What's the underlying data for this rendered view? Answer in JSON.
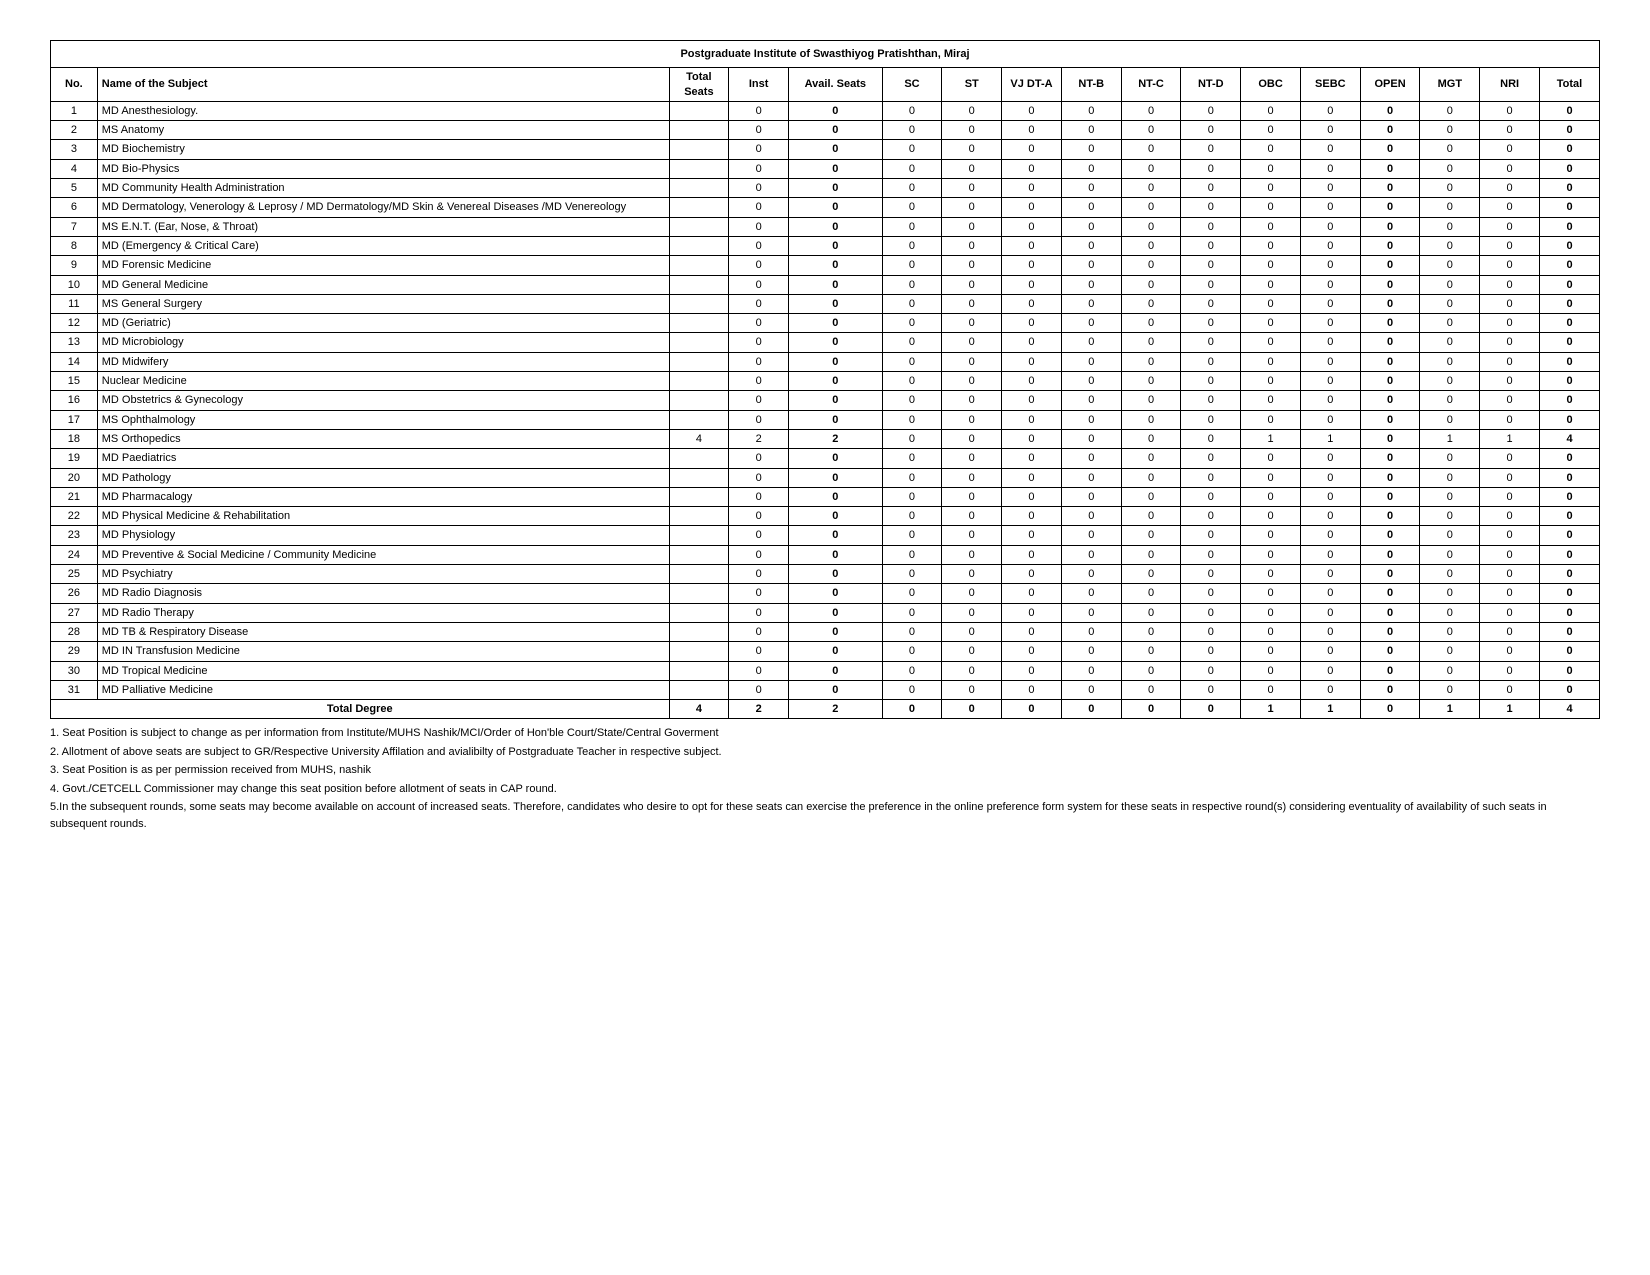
{
  "title": "Postgraduate Institute of Swasthiyog Pratishthan, Miraj",
  "columns": [
    "No.",
    "Name of the Subject",
    "Total Seats",
    "Inst",
    "Avail. Seats",
    "SC",
    "ST",
    "VJ DT-A",
    "NT-B",
    "NT-C",
    "NT-D",
    "OBC",
    "SEBC",
    "OPEN",
    "MGT",
    "NRI",
    "Total"
  ],
  "bold_cols": [
    4,
    13,
    16
  ],
  "col_classes": [
    "c-no",
    "c-name",
    "c-num",
    "c-num",
    "c-avail",
    "c-num",
    "c-num",
    "c-num",
    "c-num",
    "c-num",
    "c-num",
    "c-num",
    "c-num",
    "c-num",
    "c-num",
    "c-num",
    "c-num"
  ],
  "rows": [
    {
      "no": "1",
      "name": "MD Anesthesiology.",
      "vals": [
        "",
        "0",
        "0",
        "0",
        "0",
        "0",
        "0",
        "0",
        "0",
        "0",
        "0",
        "0",
        "0",
        "0",
        "0"
      ]
    },
    {
      "no": "2",
      "name": "MS Anatomy",
      "vals": [
        "",
        "0",
        "0",
        "0",
        "0",
        "0",
        "0",
        "0",
        "0",
        "0",
        "0",
        "0",
        "0",
        "0",
        "0"
      ]
    },
    {
      "no": "3",
      "name": "MD Biochemistry",
      "vals": [
        "",
        "0",
        "0",
        "0",
        "0",
        "0",
        "0",
        "0",
        "0",
        "0",
        "0",
        "0",
        "0",
        "0",
        "0"
      ]
    },
    {
      "no": "4",
      "name": "MD Bio-Physics",
      "vals": [
        "",
        "0",
        "0",
        "0",
        "0",
        "0",
        "0",
        "0",
        "0",
        "0",
        "0",
        "0",
        "0",
        "0",
        "0"
      ]
    },
    {
      "no": "5",
      "name": "MD Community Health Administration",
      "vals": [
        "",
        "0",
        "0",
        "0",
        "0",
        "0",
        "0",
        "0",
        "0",
        "0",
        "0",
        "0",
        "0",
        "0",
        "0"
      ]
    },
    {
      "no": "6",
      "name": "MD Dermatology, Venerology & Leprosy / MD Dermatology/MD Skin & Venereal Diseases /MD Venereology",
      "vals": [
        "",
        "0",
        "0",
        "0",
        "0",
        "0",
        "0",
        "0",
        "0",
        "0",
        "0",
        "0",
        "0",
        "0",
        "0"
      ]
    },
    {
      "no": "7",
      "name": "MS E.N.T. (Ear, Nose, & Throat)",
      "vals": [
        "",
        "0",
        "0",
        "0",
        "0",
        "0",
        "0",
        "0",
        "0",
        "0",
        "0",
        "0",
        "0",
        "0",
        "0"
      ]
    },
    {
      "no": "8",
      "name": "MD (Emergency & Critical Care)",
      "vals": [
        "",
        "0",
        "0",
        "0",
        "0",
        "0",
        "0",
        "0",
        "0",
        "0",
        "0",
        "0",
        "0",
        "0",
        "0"
      ]
    },
    {
      "no": "9",
      "name": "MD Forensic Medicine",
      "vals": [
        "",
        "0",
        "0",
        "0",
        "0",
        "0",
        "0",
        "0",
        "0",
        "0",
        "0",
        "0",
        "0",
        "0",
        "0"
      ]
    },
    {
      "no": "10",
      "name": "MD General Medicine",
      "vals": [
        "",
        "0",
        "0",
        "0",
        "0",
        "0",
        "0",
        "0",
        "0",
        "0",
        "0",
        "0",
        "0",
        "0",
        "0"
      ]
    },
    {
      "no": "11",
      "name": "MS General Surgery",
      "vals": [
        "",
        "0",
        "0",
        "0",
        "0",
        "0",
        "0",
        "0",
        "0",
        "0",
        "0",
        "0",
        "0",
        "0",
        "0"
      ]
    },
    {
      "no": "12",
      "name": "MD (Geriatric)",
      "vals": [
        "",
        "0",
        "0",
        "0",
        "0",
        "0",
        "0",
        "0",
        "0",
        "0",
        "0",
        "0",
        "0",
        "0",
        "0"
      ]
    },
    {
      "no": "13",
      "name": "MD Microbiology",
      "vals": [
        "",
        "0",
        "0",
        "0",
        "0",
        "0",
        "0",
        "0",
        "0",
        "0",
        "0",
        "0",
        "0",
        "0",
        "0"
      ]
    },
    {
      "no": "14",
      "name": "MD Midwifery",
      "vals": [
        "",
        "0",
        "0",
        "0",
        "0",
        "0",
        "0",
        "0",
        "0",
        "0",
        "0",
        "0",
        "0",
        "0",
        "0"
      ]
    },
    {
      "no": "15",
      "name": "Nuclear Medicine",
      "vals": [
        "",
        "0",
        "0",
        "0",
        "0",
        "0",
        "0",
        "0",
        "0",
        "0",
        "0",
        "0",
        "0",
        "0",
        "0"
      ]
    },
    {
      "no": "16",
      "name": "MD Obstetrics & Gynecology",
      "vals": [
        "",
        "0",
        "0",
        "0",
        "0",
        "0",
        "0",
        "0",
        "0",
        "0",
        "0",
        "0",
        "0",
        "0",
        "0"
      ]
    },
    {
      "no": "17",
      "name": "MS Ophthalmology",
      "vals": [
        "",
        "0",
        "0",
        "0",
        "0",
        "0",
        "0",
        "0",
        "0",
        "0",
        "0",
        "0",
        "0",
        "0",
        "0"
      ]
    },
    {
      "no": "18",
      "name": "MS Orthopedics",
      "vals": [
        "4",
        "2",
        "2",
        "0",
        "0",
        "0",
        "0",
        "0",
        "0",
        "1",
        "1",
        "0",
        "1",
        "1",
        "4"
      ]
    },
    {
      "no": "19",
      "name": "MD Paediatrics",
      "vals": [
        "",
        "0",
        "0",
        "0",
        "0",
        "0",
        "0",
        "0",
        "0",
        "0",
        "0",
        "0",
        "0",
        "0",
        "0"
      ]
    },
    {
      "no": "20",
      "name": "MD Pathology",
      "vals": [
        "",
        "0",
        "0",
        "0",
        "0",
        "0",
        "0",
        "0",
        "0",
        "0",
        "0",
        "0",
        "0",
        "0",
        "0"
      ]
    },
    {
      "no": "21",
      "name": "MD Pharmacalogy",
      "vals": [
        "",
        "0",
        "0",
        "0",
        "0",
        "0",
        "0",
        "0",
        "0",
        "0",
        "0",
        "0",
        "0",
        "0",
        "0"
      ]
    },
    {
      "no": "22",
      "name": "MD Physical Medicine & Rehabilitation",
      "vals": [
        "",
        "0",
        "0",
        "0",
        "0",
        "0",
        "0",
        "0",
        "0",
        "0",
        "0",
        "0",
        "0",
        "0",
        "0"
      ]
    },
    {
      "no": "23",
      "name": "MD Physiology",
      "vals": [
        "",
        "0",
        "0",
        "0",
        "0",
        "0",
        "0",
        "0",
        "0",
        "0",
        "0",
        "0",
        "0",
        "0",
        "0"
      ]
    },
    {
      "no": "24",
      "name": "MD Preventive & Social Medicine / Community Medicine",
      "vals": [
        "",
        "0",
        "0",
        "0",
        "0",
        "0",
        "0",
        "0",
        "0",
        "0",
        "0",
        "0",
        "0",
        "0",
        "0"
      ]
    },
    {
      "no": "25",
      "name": "MD Psychiatry",
      "vals": [
        "",
        "0",
        "0",
        "0",
        "0",
        "0",
        "0",
        "0",
        "0",
        "0",
        "0",
        "0",
        "0",
        "0",
        "0"
      ]
    },
    {
      "no": "26",
      "name": "MD Radio Diagnosis",
      "vals": [
        "",
        "0",
        "0",
        "0",
        "0",
        "0",
        "0",
        "0",
        "0",
        "0",
        "0",
        "0",
        "0",
        "0",
        "0"
      ]
    },
    {
      "no": "27",
      "name": "MD Radio Therapy",
      "vals": [
        "",
        "0",
        "0",
        "0",
        "0",
        "0",
        "0",
        "0",
        "0",
        "0",
        "0",
        "0",
        "0",
        "0",
        "0"
      ]
    },
    {
      "no": "28",
      "name": "MD TB & Respiratory Disease",
      "vals": [
        "",
        "0",
        "0",
        "0",
        "0",
        "0",
        "0",
        "0",
        "0",
        "0",
        "0",
        "0",
        "0",
        "0",
        "0"
      ]
    },
    {
      "no": "29",
      "name": "MD IN Transfusion Medicine",
      "vals": [
        "",
        "0",
        "0",
        "0",
        "0",
        "0",
        "0",
        "0",
        "0",
        "0",
        "0",
        "0",
        "0",
        "0",
        "0"
      ]
    },
    {
      "no": "30",
      "name": "MD Tropical Medicine",
      "vals": [
        "",
        "0",
        "0",
        "0",
        "0",
        "0",
        "0",
        "0",
        "0",
        "0",
        "0",
        "0",
        "0",
        "0",
        "0"
      ]
    },
    {
      "no": "31",
      "name": "MD Palliative Medicine",
      "vals": [
        "",
        "0",
        "0",
        "0",
        "0",
        "0",
        "0",
        "0",
        "0",
        "0",
        "0",
        "0",
        "0",
        "0",
        "0"
      ]
    }
  ],
  "total_row": {
    "label": "Total Degree",
    "vals": [
      "4",
      "2",
      "2",
      "0",
      "0",
      "0",
      "0",
      "0",
      "0",
      "1",
      "1",
      "0",
      "1",
      "1",
      "4"
    ]
  },
  "notes": [
    "1. Seat Position is subject to change as per information from Institute/MUHS Nashik/MCI/Order of Hon'ble Court/State/Central Goverment",
    "2. Allotment of above seats are subject to GR/Respective University Affilation and avialibilty of Postgraduate Teacher in respective subject.",
    "3. Seat Position is as per permission received from MUHS, nashik",
    "4. Govt./CETCELL Commissioner may change this seat position before allotment of seats in CAP round.",
    "5.In the subsequent rounds, some seats may become available on account of increased seats. Therefore, candidates who desire to opt for these seats can exercise the preference in the online preference form system for these seats in respective round(s) considering eventuality of availability of such seats in subsequent rounds."
  ]
}
